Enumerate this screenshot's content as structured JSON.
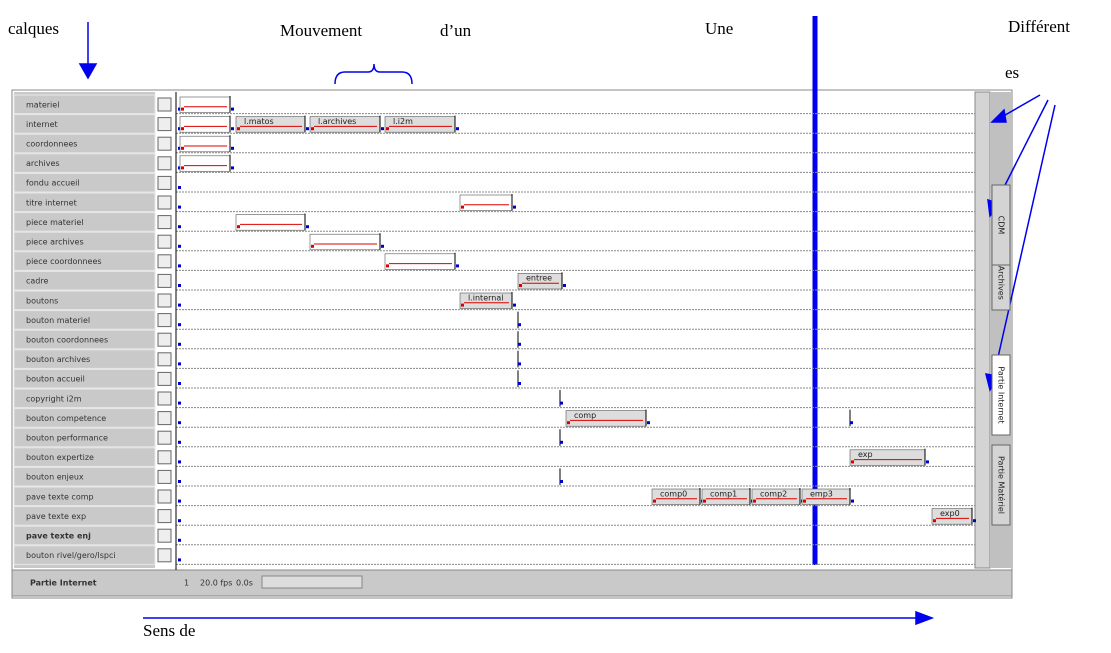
{
  "annotations": {
    "layers": "calques",
    "motion": "Mouvement",
    "of_a": "d’un",
    "a": "Une",
    "different": "Différent",
    "es": "es",
    "direction": "Sens de"
  },
  "layers": [
    "materiel",
    "internet",
    "coordonnees",
    "archives",
    "fondu accueil",
    "titre internet",
    "piece materiel",
    "piece archives",
    "piece coordonnees",
    "cadre",
    "boutons",
    "bouton materiel",
    "bouton coordonnees",
    "bouton archives",
    "bouton accueil",
    "copyright i2m",
    "bouton competence",
    "bouton performance",
    "bouton expertize",
    "bouton enjeux",
    "pave texte comp",
    "pave texte exp",
    "pave texte enj",
    "bouton rivel/gero/lspci"
  ],
  "tween_labels": [
    "l.matos",
    "l.archives",
    "l.i2m",
    "entree",
    "l.internal",
    "comp",
    "exp",
    "comp0",
    "comp1",
    "comp2",
    "emp3",
    "exp0"
  ],
  "status": {
    "scene": "Partie Internet",
    "frame": 1,
    "fps": "20.0 fps",
    "time": "0.0s"
  },
  "tabs": [
    "Partie Matériel",
    "Partie Internet",
    "Partie Archives",
    "CDM"
  ]
}
